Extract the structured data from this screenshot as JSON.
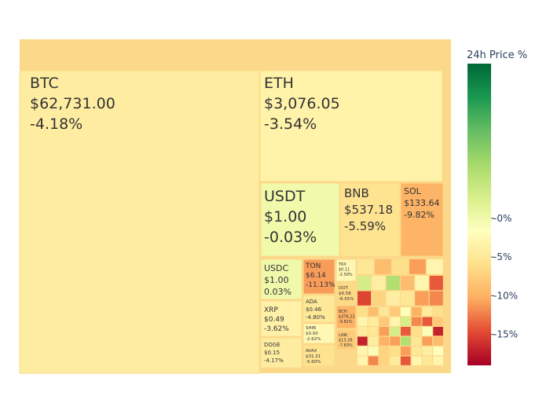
{
  "chart_data": {
    "type": "treemap",
    "title": "",
    "colorbar": {
      "title": "24h Price %",
      "ticks": [
        "-0%",
        "-5%",
        "-10%",
        "-15%"
      ],
      "tick_values": [
        0,
        -5,
        -10,
        -15
      ],
      "range": [
        -19,
        20
      ],
      "colors": [
        "#a50026",
        "#e34a33",
        "#fdae61",
        "#fee08b",
        "#ffffbf",
        "#d9ef8b",
        "#a6d96a",
        "#66bd63",
        "#1a9850",
        "#006837"
      ]
    },
    "root_color": "#fcd98a",
    "items": [
      {
        "name": "BTC",
        "price": "$62,731.00",
        "change": "-4.18%",
        "pct": -4.18
      },
      {
        "name": "ETH",
        "price": "$3,076.05",
        "change": "-3.54%",
        "pct": -3.54
      },
      {
        "name": "USDT",
        "price": "$1.00",
        "change": "-0.03%",
        "pct": -0.03
      },
      {
        "name": "BNB",
        "price": "$537.18",
        "change": "-5.59%",
        "pct": -5.59
      },
      {
        "name": "SOL",
        "price": "$133.64",
        "change": "-9.82%",
        "pct": -9.82
      },
      {
        "name": "USDC",
        "price": "$1.00",
        "change": "0.03%",
        "pct": 0.03
      },
      {
        "name": "TON",
        "price": "$6.14",
        "change": "-11.13%",
        "pct": -11.13
      },
      {
        "name": "XRP",
        "price": "$0.49",
        "change": "-3.62%",
        "pct": -3.62
      },
      {
        "name": "ADA",
        "price": "$0.46",
        "change": "-4.80%",
        "pct": -4.8
      },
      {
        "name": "DOGE",
        "price": "$0.15",
        "change": "-4.17%",
        "pct": -4.17
      },
      {
        "name": "SHIB",
        "price": "$0.00",
        "change": "-2.62%",
        "pct": -2.62
      },
      {
        "name": "AVAX",
        "price": "$31.21",
        "change": "-5.60%",
        "pct": -5.6
      },
      {
        "name": "TRX",
        "price": "$0.11",
        "change": "-2.59%",
        "pct": -2.59
      },
      {
        "name": "DOT",
        "price": "$6.58",
        "change": "-6.55%",
        "pct": -6.55
      },
      {
        "name": "BCH",
        "price": "$376.22",
        "change": "-9.81%",
        "pct": -9.81
      },
      {
        "name": "LINK",
        "price": "$13.26",
        "change": "-7.83%",
        "pct": -7.83
      }
    ]
  }
}
